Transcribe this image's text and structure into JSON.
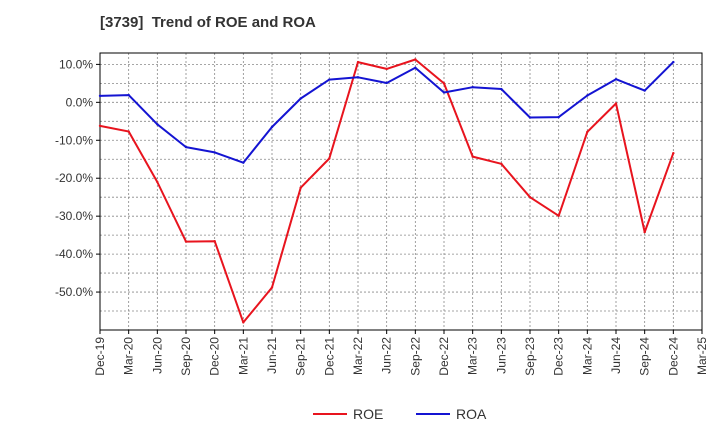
{
  "chart_data": {
    "type": "line",
    "title": "[3739]  Trend of ROE and ROA",
    "xlabel": "",
    "ylabel": "",
    "categories": [
      "Dec-19",
      "Mar-20",
      "Jun-20",
      "Sep-20",
      "Dec-20",
      "Mar-21",
      "Jun-21",
      "Sep-21",
      "Dec-21",
      "Mar-22",
      "Jun-22",
      "Sep-22",
      "Dec-22",
      "Mar-23",
      "Jun-23",
      "Sep-23",
      "Dec-23",
      "Mar-24",
      "Jun-24",
      "Sep-24",
      "Dec-24",
      "Mar-25"
    ],
    "ylim": [
      -60,
      13
    ],
    "yticks": [
      10,
      0,
      -10,
      -20,
      -30,
      -40,
      -50
    ],
    "ytick_labels": [
      "10.0%",
      "0.0%",
      "-10.0%",
      "-20.0%",
      "-30.0%",
      "-40.0%",
      "-50.0%"
    ],
    "grid": true,
    "legend_position": "bottom",
    "series": [
      {
        "name": "ROE",
        "color": "#e8141e",
        "values": [
          -6.2,
          -7.7,
          -21.0,
          -36.7,
          -36.6,
          -58.0,
          -48.8,
          -22.5,
          -14.8,
          10.6,
          8.8,
          11.3,
          5.0,
          -14.3,
          -16.2,
          -25.0,
          -29.9,
          -7.8,
          -0.3,
          -34.2,
          -13.4,
          null
        ]
      },
      {
        "name": "ROA",
        "color": "#1414d2",
        "values": [
          1.7,
          1.9,
          -5.8,
          -11.8,
          -13.2,
          -15.9,
          -6.5,
          1.0,
          6.0,
          6.6,
          5.1,
          9.1,
          2.6,
          4.0,
          3.5,
          -4.0,
          -3.9,
          1.8,
          6.1,
          3.1,
          10.6,
          null
        ]
      }
    ]
  }
}
